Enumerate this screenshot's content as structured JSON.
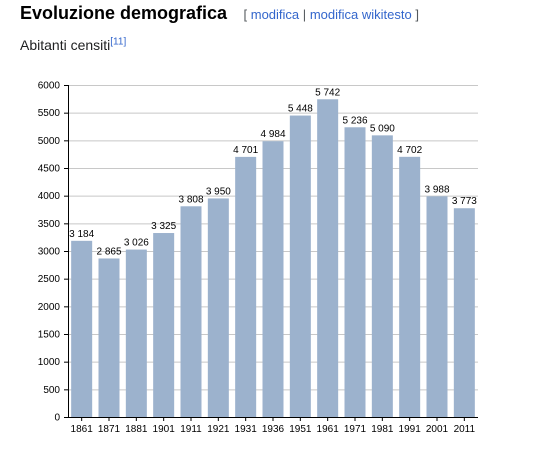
{
  "section": {
    "title": "Evoluzione demografica",
    "edit_open": "[",
    "edit_label": "modifica",
    "edit_separator": "|",
    "edit_source_label": "modifica wikitesto",
    "edit_close": "]"
  },
  "caption": {
    "text": "Abitanti censiti",
    "reference": "[11]"
  },
  "colors": {
    "bar": "#9cb2cd",
    "grid": "#c8c8c8",
    "axis": "#000000",
    "link": "#3366cc"
  },
  "chart_data": {
    "type": "bar",
    "title": "",
    "xlabel": "",
    "ylabel": "",
    "categories": [
      "1861",
      "1871",
      "1881",
      "1901",
      "1911",
      "1921",
      "1931",
      "1936",
      "1951",
      "1961",
      "1971",
      "1981",
      "1991",
      "2001",
      "2011"
    ],
    "values": [
      3184,
      2865,
      3026,
      3325,
      3808,
      3950,
      4701,
      4984,
      5448,
      5742,
      5236,
      5090,
      4702,
      3988,
      3773
    ],
    "data_labels": [
      "3 184",
      "2 865",
      "3 026",
      "3 325",
      "3 808",
      "3 950",
      "4 701",
      "4 984",
      "5 448",
      "5 742",
      "5 236",
      "5 090",
      "4 702",
      "3 988",
      "3 773"
    ],
    "ylim": [
      0,
      6000
    ],
    "yticks": [
      0,
      500,
      1000,
      1500,
      2000,
      2500,
      3000,
      3500,
      4000,
      4500,
      5000,
      5500,
      6000
    ],
    "grid": true,
    "legend": "none"
  }
}
